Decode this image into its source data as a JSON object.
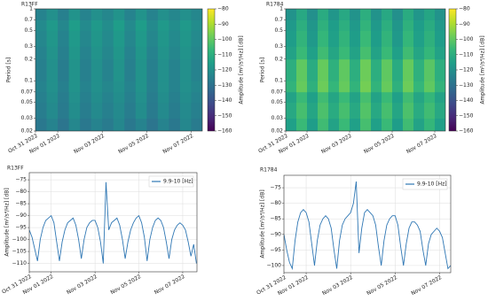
{
  "chart_data": [
    {
      "type": "heatmap",
      "title": "R13FF",
      "ylabel": "Period [s]",
      "colorbar_label": "Amplitude [m²/s⁴/Hz] [dB]",
      "colormap": "viridis",
      "log_y": true,
      "x_edges": [
        0,
        0.5,
        1,
        1.5,
        2,
        2.5,
        3,
        3.5,
        4,
        4.5,
        5,
        5.5,
        6,
        6.5,
        7,
        7.5
      ],
      "y_edges": [
        0.02,
        0.03,
        0.05,
        0.07,
        0.1,
        0.2,
        0.3,
        0.5,
        0.7,
        1
      ],
      "z": [
        [
          -128,
          -124,
          -129,
          -123,
          -128,
          -124,
          -127,
          -123,
          -128,
          -124,
          -129,
          -124,
          -128,
          -123,
          -127
        ],
        [
          -126,
          -122,
          -127,
          -121,
          -126,
          -122,
          -125,
          -122,
          -126,
          -121,
          -127,
          -122,
          -126,
          -122,
          -125
        ],
        [
          -125,
          -121,
          -126,
          -120,
          -125,
          -121,
          -124,
          -121,
          -125,
          -120,
          -126,
          -121,
          -125,
          -121,
          -124
        ],
        [
          -124,
          -120,
          -125,
          -119,
          -124,
          -120,
          -123,
          -120,
          -124,
          -119,
          -125,
          -120,
          -124,
          -120,
          -123
        ],
        [
          -125,
          -120,
          -126,
          -119,
          -125,
          -120,
          -124,
          -119,
          -125,
          -119,
          -125,
          -120,
          -124,
          -120,
          -124
        ],
        [
          -124,
          -119,
          -125,
          -118,
          -124,
          -119,
          -123,
          -118,
          -124,
          -118,
          -124,
          -119,
          -123,
          -119,
          -123
        ],
        [
          -123,
          -118,
          -124,
          -117,
          -123,
          -118,
          -122,
          -117,
          -123,
          -117,
          -123,
          -118,
          -122,
          -118,
          -122
        ],
        [
          -122,
          -117,
          -123,
          -116,
          -122,
          -117,
          -121,
          -116,
          -122,
          -116,
          -122,
          -117,
          -121,
          -117,
          -121
        ],
        [
          -124,
          -120,
          -125,
          -119,
          -124,
          -120,
          -123,
          -119,
          -124,
          -119,
          -124,
          -120,
          -123,
          -120,
          -123
        ]
      ],
      "xlim": [
        0,
        7.5
      ],
      "xticks": [
        {
          "value": 0,
          "label": "Oct 31 2022"
        },
        {
          "value": 1,
          "label": "Nov 01 2022"
        },
        {
          "value": 3,
          "label": "Nov 03 2022"
        },
        {
          "value": 5,
          "label": "Nov 05 2022"
        },
        {
          "value": 7,
          "label": "Nov 07 2022"
        }
      ],
      "ylim": [
        0.02,
        1
      ],
      "yticks": [
        0.02,
        0.03,
        0.05,
        0.07,
        0.1,
        0.2,
        0.3,
        0.5,
        0.7,
        1
      ],
      "clim": [
        -160,
        -80
      ],
      "cticks": [
        {
          "value": -160,
          "label": "−160"
        },
        {
          "value": -150,
          "label": "−150"
        },
        {
          "value": -140,
          "label": "−140"
        },
        {
          "value": -130,
          "label": "−130"
        },
        {
          "value": -120,
          "label": "−120"
        },
        {
          "value": -110,
          "label": "−110"
        },
        {
          "value": -100,
          "label": "−100"
        },
        {
          "value": -90,
          "label": "−90"
        },
        {
          "value": -80,
          "label": "−80"
        }
      ]
    },
    {
      "type": "heatmap",
      "title": "R1784",
      "ylabel": "Period [s]",
      "colorbar_label": "Amplitude [m²/s⁴/Hz] [dB]",
      "colormap": "viridis",
      "log_y": true,
      "x_edges": [
        0,
        0.5,
        1,
        1.5,
        2,
        2.5,
        3,
        3.5,
        4,
        4.5,
        5,
        5.5,
        6,
        6.5,
        7,
        7.5
      ],
      "y_edges": [
        0.02,
        0.03,
        0.05,
        0.07,
        0.1,
        0.2,
        0.3,
        0.5,
        0.7,
        1
      ],
      "z": [
        [
          -115,
          -106,
          -116,
          -105,
          -114,
          -106,
          -115,
          -104,
          -115,
          -106,
          -116,
          -105,
          -114,
          -107,
          -115
        ],
        [
          -112,
          -104,
          -113,
          -103,
          -111,
          -104,
          -112,
          -102,
          -112,
          -104,
          -113,
          -103,
          -111,
          -105,
          -112
        ],
        [
          -114,
          -106,
          -115,
          -105,
          -113,
          -106,
          -114,
          -104,
          -114,
          -106,
          -115,
          -105,
          -113,
          -107,
          -114
        ],
        [
          -108,
          -99,
          -109,
          -98,
          -107,
          -99,
          -108,
          -97,
          -108,
          -99,
          -109,
          -98,
          -107,
          -100,
          -108
        ],
        [
          -110,
          -100,
          -111,
          -99,
          -109,
          -100,
          -110,
          -98,
          -110,
          -100,
          -111,
          -99,
          -109,
          -101,
          -110
        ],
        [
          -114,
          -106,
          -115,
          -105,
          -113,
          -106,
          -114,
          -104,
          -114,
          -106,
          -115,
          -105,
          -113,
          -107,
          -114
        ],
        [
          -116,
          -108,
          -117,
          -107,
          -115,
          -108,
          -116,
          -106,
          -116,
          -108,
          -117,
          -107,
          -115,
          -109,
          -116
        ],
        [
          -117,
          -110,
          -118,
          -109,
          -116,
          -110,
          -117,
          -108,
          -117,
          -110,
          -118,
          -109,
          -116,
          -111,
          -117
        ],
        [
          -119,
          -112,
          -120,
          -111,
          -118,
          -112,
          -119,
          -110,
          -119,
          -112,
          -120,
          -111,
          -118,
          -113,
          -119
        ]
      ],
      "xlim": [
        0,
        7.5
      ],
      "xticks": [
        {
          "value": 0,
          "label": "Oct 31 2022"
        },
        {
          "value": 1,
          "label": "Nov 01 2022"
        },
        {
          "value": 3,
          "label": "Nov 03 2022"
        },
        {
          "value": 5,
          "label": "Nov 05 2022"
        },
        {
          "value": 7,
          "label": "Nov 07 2022"
        }
      ],
      "ylim": [
        0.02,
        1
      ],
      "yticks": [
        0.02,
        0.03,
        0.05,
        0.07,
        0.1,
        0.2,
        0.3,
        0.5,
        0.7,
        1
      ],
      "clim": [
        -160,
        -80
      ],
      "cticks": [
        {
          "value": -160,
          "label": "−160"
        },
        {
          "value": -150,
          "label": "−150"
        },
        {
          "value": -140,
          "label": "−140"
        },
        {
          "value": -130,
          "label": "−130"
        },
        {
          "value": -120,
          "label": "−120"
        },
        {
          "value": -110,
          "label": "−110"
        },
        {
          "value": -100,
          "label": "−100"
        },
        {
          "value": -90,
          "label": "−90"
        },
        {
          "value": -80,
          "label": "−80"
        }
      ]
    },
    {
      "type": "line",
      "title": "R13FF",
      "ylabel": "Amplitude [m²/s⁴/Hz] [dB]",
      "grid": true,
      "legend": "upper right",
      "series": [
        {
          "name": "9.9-10 [Hz]",
          "color": "#2f77b4",
          "x": [
            0,
            0.125,
            0.25,
            0.375,
            0.5,
            0.625,
            0.75,
            0.875,
            1,
            1.125,
            1.25,
            1.375,
            1.5,
            1.625,
            1.75,
            1.875,
            2,
            2.125,
            2.25,
            2.375,
            2.5,
            2.625,
            2.75,
            2.875,
            3,
            3.125,
            3.25,
            3.375,
            3.5,
            3.625,
            3.75,
            3.875,
            4,
            4.125,
            4.25,
            4.375,
            4.5,
            4.625,
            4.75,
            4.875,
            5,
            5.125,
            5.25,
            5.375,
            5.5,
            5.625,
            5.75,
            5.875,
            6,
            6.125,
            6.25,
            6.375,
            6.5,
            6.625,
            6.75,
            6.875,
            7,
            7.125,
            7.25,
            7.375,
            7.5,
            7.625
          ],
          "values": [
            -96,
            -99,
            -104,
            -109,
            -100,
            -95,
            -92,
            -91,
            -90,
            -93,
            -101,
            -109,
            -101,
            -96,
            -93,
            -92,
            -91,
            -94,
            -100,
            -108,
            -100,
            -95,
            -93,
            -92,
            -92,
            -95,
            -101,
            -110,
            -76,
            -96,
            -93,
            -92,
            -91,
            -94,
            -100,
            -108,
            -101,
            -96,
            -93,
            -91,
            -90,
            -93,
            -99,
            -109,
            -100,
            -95,
            -92,
            -91,
            -92,
            -95,
            -101,
            -108,
            -100,
            -96,
            -94,
            -93,
            -94,
            -96,
            -101,
            -107,
            -102,
            -110
          ]
        }
      ],
      "xlim": [
        0,
        7.65
      ],
      "xticks": [
        {
          "value": 0,
          "label": "Oct 31 2022"
        },
        {
          "value": 1,
          "label": "Nov 01 2022"
        },
        {
          "value": 3,
          "label": "Nov 03 2022"
        },
        {
          "value": 5,
          "label": "Nov 05 2022"
        },
        {
          "value": 7,
          "label": "Nov 07 2022"
        }
      ],
      "ylim": [
        -113.5,
        -72
      ],
      "yticks": [
        {
          "value": -110,
          "label": "−110"
        },
        {
          "value": -105,
          "label": "−105"
        },
        {
          "value": -100,
          "label": "−100"
        },
        {
          "value": -95,
          "label": "−95"
        },
        {
          "value": -90,
          "label": "−90"
        },
        {
          "value": -85,
          "label": "−85"
        },
        {
          "value": -80,
          "label": "−80"
        },
        {
          "value": -75,
          "label": "−75"
        }
      ]
    },
    {
      "type": "line",
      "title": "R1784",
      "ylabel": "Amplitude [m²/s⁴/Hz] [dB]",
      "grid": true,
      "legend": "upper right",
      "series": [
        {
          "name": "9.9-10 [Hz]",
          "color": "#2f77b4",
          "x": [
            0,
            0.125,
            0.25,
            0.375,
            0.5,
            0.625,
            0.75,
            0.875,
            1,
            1.125,
            1.25,
            1.375,
            1.5,
            1.625,
            1.75,
            1.875,
            2,
            2.125,
            2.25,
            2.375,
            2.5,
            2.625,
            2.75,
            2.875,
            3,
            3.125,
            3.25,
            3.375,
            3.5,
            3.625,
            3.75,
            3.875,
            4,
            4.125,
            4.25,
            4.375,
            4.5,
            4.625,
            4.75,
            4.875,
            5,
            5.125,
            5.25,
            5.375,
            5.5,
            5.625,
            5.75,
            5.875,
            6,
            6.125,
            6.25,
            6.375,
            6.5,
            6.625,
            6.75,
            6.875,
            7,
            7.125,
            7.25,
            7.375,
            7.5
          ],
          "values": [
            -90,
            -95,
            -99,
            -101,
            -92,
            -86,
            -83,
            -82,
            -83,
            -86,
            -93,
            -100,
            -92,
            -87,
            -85,
            -84,
            -85,
            -88,
            -95,
            -101,
            -92,
            -87,
            -85,
            -84,
            -83,
            -80,
            -73,
            -96,
            -88,
            -83,
            -82,
            -83,
            -84,
            -87,
            -94,
            -100,
            -92,
            -87,
            -85,
            -84,
            -84,
            -87,
            -94,
            -100,
            -93,
            -88,
            -86,
            -86,
            -87,
            -89,
            -95,
            -100,
            -93,
            -90,
            -89,
            -88,
            -89,
            -91,
            -96,
            -101,
            -100
          ]
        }
      ],
      "xlim": [
        0,
        7.5
      ],
      "xticks": [
        {
          "value": 0,
          "label": "Oct 31 2022"
        },
        {
          "value": 1,
          "label": "Nov 01 2022"
        },
        {
          "value": 3,
          "label": "Nov 03 2022"
        },
        {
          "value": 5,
          "label": "Nov 05 2022"
        },
        {
          "value": 7,
          "label": "Nov 07 2022"
        }
      ],
      "ylim": [
        -102.3,
        -71
      ],
      "yticks": [
        {
          "value": -100,
          "label": "−100"
        },
        {
          "value": -95,
          "label": "−95"
        },
        {
          "value": -90,
          "label": "−90"
        },
        {
          "value": -85,
          "label": "−85"
        },
        {
          "value": -80,
          "label": "−80"
        },
        {
          "value": -75,
          "label": "−75"
        }
      ]
    }
  ]
}
